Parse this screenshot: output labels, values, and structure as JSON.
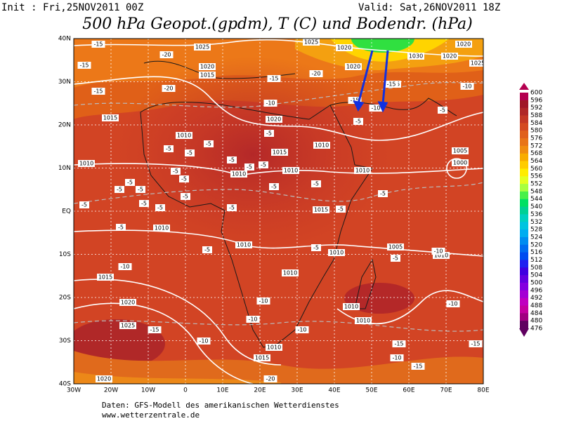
{
  "header": {
    "init": "Init : Fri,25NOV2011 00Z",
    "valid": "Valid: Sat,26NOV2011 18Z",
    "title": "500 hPa Geopot.(gpdm), T (C) und Bodendr. (hPa)"
  },
  "map": {
    "lat_labels": [
      "40N",
      "30N",
      "20N",
      "10N",
      "EQ",
      "10S",
      "20S",
      "30S",
      "40S"
    ],
    "lon_labels": [
      "30W",
      "20W",
      "10W",
      "0",
      "10E",
      "20E",
      "30E",
      "40E",
      "50E",
      "60E",
      "70E",
      "80E"
    ],
    "isobar_labels": [
      1025,
      1020,
      1015,
      1025,
      1020,
      1020,
      1030,
      1020,
      1020,
      1025,
      1015,
      1015,
      1020,
      1010,
      1015,
      1010,
      1010,
      1010,
      1010,
      1005,
      1000,
      1010,
      1015,
      1010,
      1010,
      1010,
      1005,
      1010,
      1015,
      1010,
      1020,
      1025,
      1010,
      1010,
      1015,
      1010,
      1020
    ],
    "temp_labels": [
      -15,
      -20,
      -15,
      -15,
      -20,
      -15,
      -20,
      -10,
      -15,
      -10,
      -15,
      -10,
      -5,
      -5,
      -5,
      -5,
      -5,
      -5,
      -5,
      -5,
      -5,
      -5,
      -5,
      -5,
      -5,
      -5,
      -5,
      -5,
      -5,
      -5,
      -5,
      -5,
      -5,
      -5,
      -5,
      -5,
      -5,
      -5,
      -10,
      -5,
      -10,
      -10,
      -10,
      -10,
      -10,
      -15,
      -10,
      -15,
      -15,
      -15,
      -20,
      -10
    ]
  },
  "colorbar": {
    "levels": [
      600,
      596,
      592,
      588,
      584,
      580,
      576,
      572,
      568,
      564,
      560,
      556,
      552,
      548,
      544,
      540,
      536,
      532,
      528,
      524,
      520,
      516,
      512,
      508,
      504,
      500,
      496,
      492,
      488,
      484,
      480,
      476
    ],
    "colors": [
      "#b40050",
      "#a01828",
      "#b02828",
      "#c43826",
      "#d44a22",
      "#e0601c",
      "#e87418",
      "#f08c10",
      "#f8ac00",
      "#ffcc00",
      "#ffec00",
      "#e4ff20",
      "#a8ff40",
      "#48f048",
      "#00e064",
      "#00d094",
      "#00d0c0",
      "#00c4e0",
      "#00acf0",
      "#008cf0",
      "#006cf0",
      "#004cf0",
      "#2020f0",
      "#4000e0",
      "#6400e0",
      "#8400e0",
      "#a400d4",
      "#c000c0",
      "#c400a0",
      "#a00080",
      "#600060"
    ]
  },
  "footer": {
    "source": "Daten: GFS-Modell des amerikanischen Wetterdienstes",
    "url": "www.wetterzentrale.de"
  }
}
